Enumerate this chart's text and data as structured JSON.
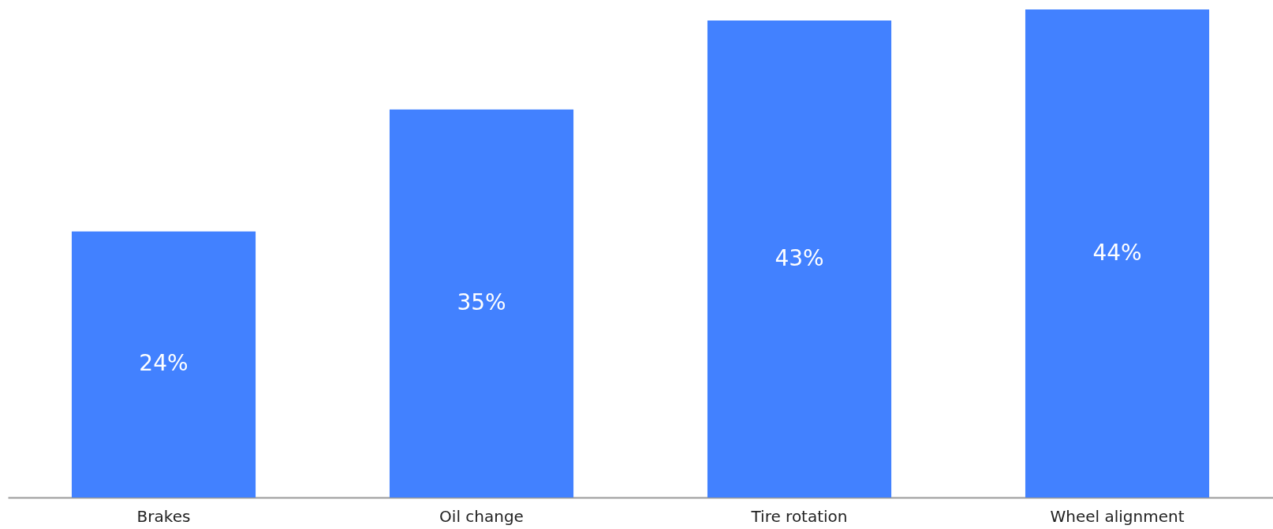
{
  "chart_data": {
    "type": "bar",
    "categories": [
      "Brakes",
      "Oil change",
      "Tire rotation",
      "Wheel alignment"
    ],
    "values": [
      24,
      35,
      43,
      44
    ],
    "value_labels": [
      "24%",
      "35%",
      "43%",
      "44%"
    ],
    "color": "#4281ff"
  }
}
